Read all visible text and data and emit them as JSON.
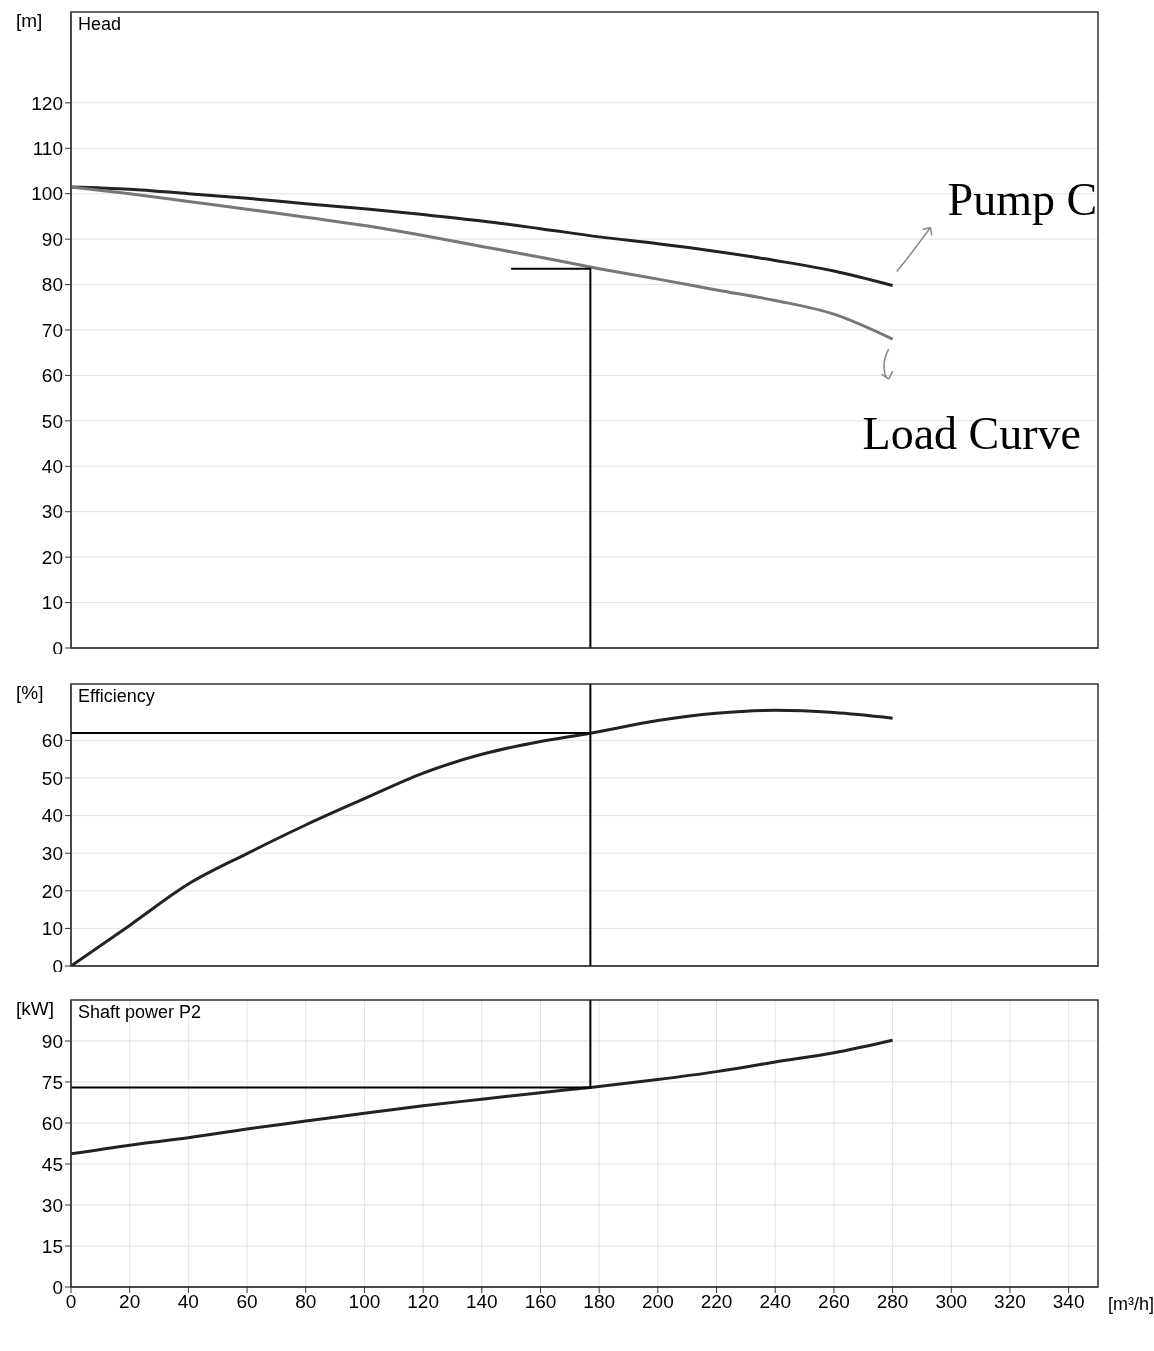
{
  "chart_data": [
    {
      "type": "line",
      "title": "Head",
      "ylabel": "[m]",
      "x": [
        0,
        20,
        40,
        60,
        80,
        100,
        120,
        140,
        160,
        180,
        200,
        220,
        240,
        260,
        280
      ],
      "xlim": [
        0,
        350
      ],
      "xticks": [
        0,
        20,
        40,
        60,
        80,
        100,
        120,
        140,
        160,
        180,
        200,
        220,
        240,
        260,
        280,
        300,
        320,
        340
      ],
      "ylim": [
        0,
        140
      ],
      "yticks": [
        0,
        10,
        20,
        30,
        40,
        50,
        60,
        70,
        80,
        90,
        100,
        110,
        120
      ],
      "tick_labels": "y",
      "grid": true,
      "marker": "none",
      "line_style": "solid",
      "series": [
        {
          "name": "Pump C",
          "color": "#222222",
          "values": [
            101.5,
            101,
            100,
            99,
            97.8,
            96.7,
            95.4,
            94,
            92.3,
            90.5,
            89,
            87.3,
            85.3,
            83,
            79.8
          ]
        },
        {
          "name": "Load Curve",
          "color": "#777777",
          "values": [
            101.5,
            100,
            98.3,
            96.6,
            94.8,
            93,
            90.8,
            88.4,
            86,
            83.5,
            81.2,
            78.8,
            76.5,
            73.5,
            68
          ]
        },
        {
          "color": "#000000",
          "x": [
            150,
            177,
            177
          ],
          "values": [
            83.5,
            83.5,
            0
          ]
        }
      ]
    },
    {
      "type": "line",
      "title": "Efficiency",
      "ylabel": "[%]",
      "x": [
        0,
        20,
        40,
        60,
        80,
        100,
        120,
        140,
        160,
        177,
        200,
        220,
        240,
        260,
        280
      ],
      "xlim": [
        0,
        350
      ],
      "xticks": [
        0,
        20,
        40,
        60,
        80,
        100,
        120,
        140,
        160,
        180,
        200,
        220,
        240,
        260,
        280,
        300,
        320,
        340
      ],
      "ylim": [
        0,
        75
      ],
      "yticks": [
        0,
        10,
        20,
        30,
        40,
        50,
        60
      ],
      "tick_labels": "y",
      "grid": true,
      "marker": "none",
      "line_style": "solid",
      "series": [
        {
          "color": "#222222",
          "values": [
            0,
            10.8,
            21.8,
            29.9,
            37.5,
            44.5,
            51.3,
            56.3,
            59.7,
            61.9,
            65.3,
            67.2,
            68,
            67.4,
            65.9
          ]
        },
        {
          "color": "#000000",
          "x": [
            0,
            177
          ],
          "values": [
            62,
            62
          ]
        }
      ],
      "ref_lines": [
        {
          "axis": "x",
          "value": 177,
          "color": "#000000"
        }
      ]
    },
    {
      "type": "line",
      "title": "Shaft power P2",
      "ylabel": "[kW]",
      "xlabel": "[m³/h]",
      "x": [
        0,
        20,
        40,
        60,
        80,
        100,
        120,
        140,
        160,
        177,
        200,
        220,
        240,
        260,
        280
      ],
      "xlim": [
        0,
        350
      ],
      "xticks": [
        0,
        20,
        40,
        60,
        80,
        100,
        120,
        140,
        160,
        180,
        200,
        220,
        240,
        260,
        280,
        300,
        320,
        340
      ],
      "ylim": [
        0,
        105
      ],
      "yticks": [
        0,
        15,
        30,
        45,
        60,
        75,
        90
      ],
      "grid": true,
      "marker": "none",
      "line_style": "solid",
      "series": [
        {
          "color": "#222222",
          "values": [
            48.7,
            51.9,
            54.6,
            57.8,
            60.7,
            63.6,
            66.3,
            68.7,
            71.1,
            73,
            75.9,
            78.8,
            82.3,
            85.7,
            90.3
          ]
        },
        {
          "color": "#000000",
          "x": [
            0,
            177,
            177
          ],
          "values": [
            73,
            73,
            105
          ]
        }
      ]
    }
  ]
}
